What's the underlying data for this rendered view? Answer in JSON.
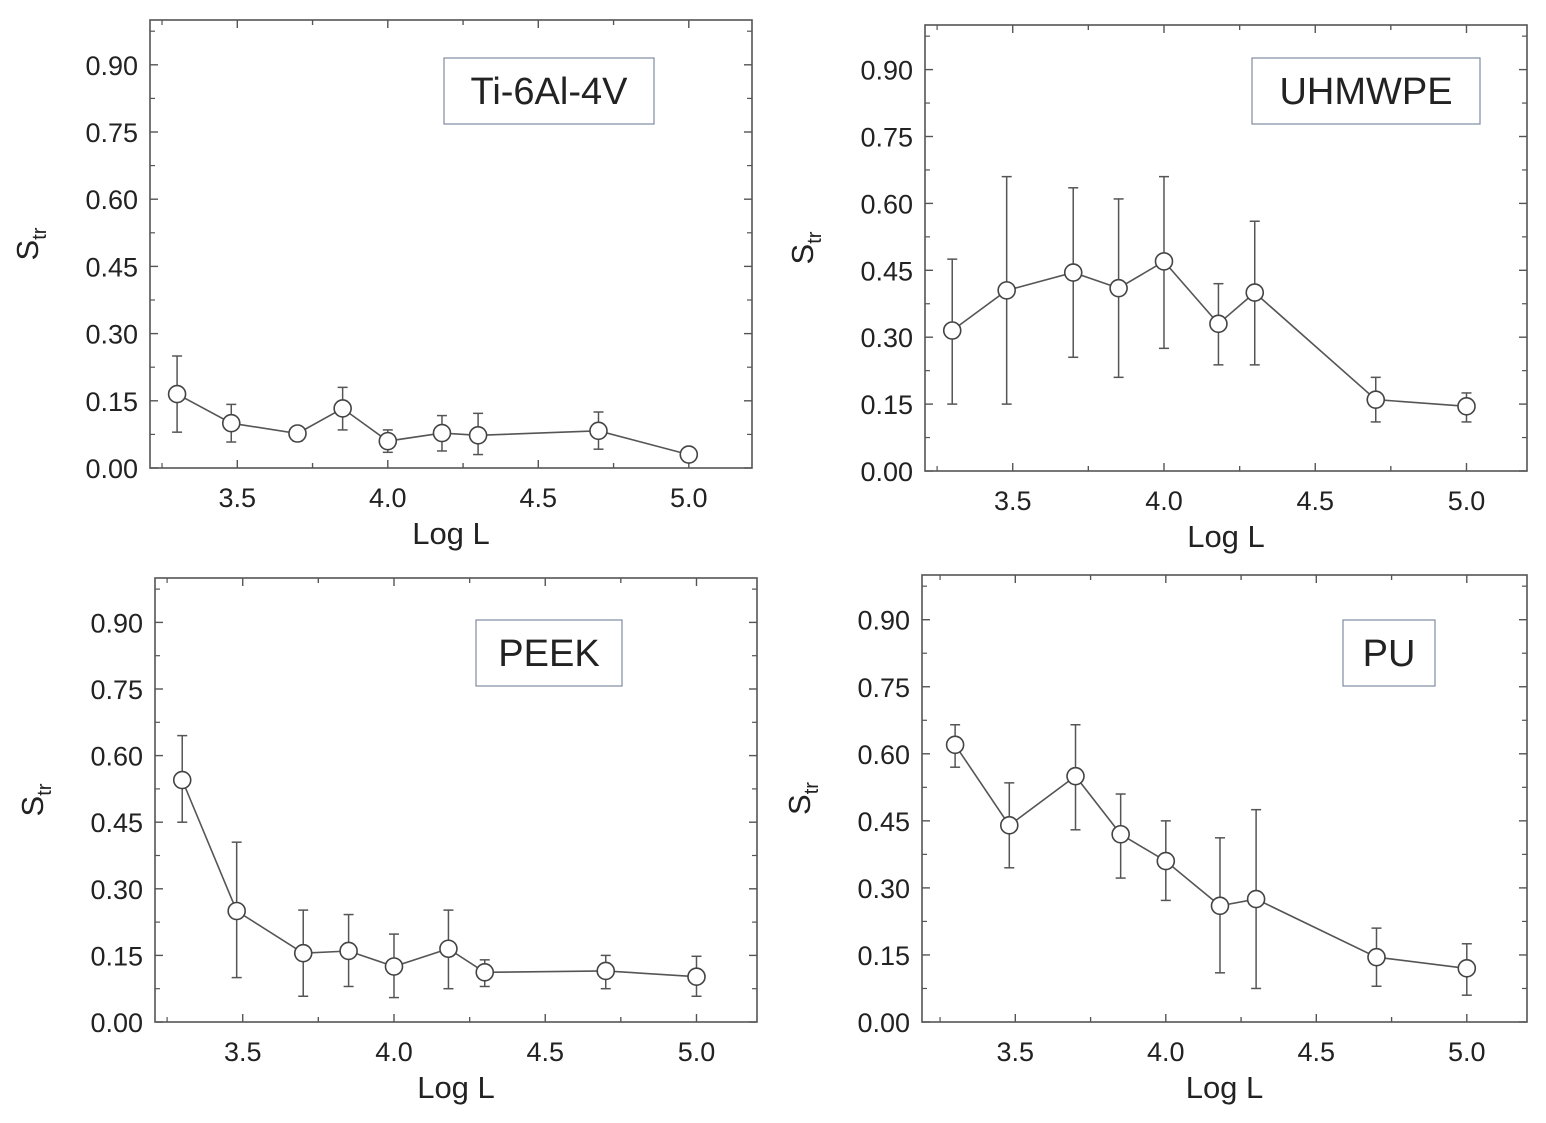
{
  "figure": {
    "colors": {
      "frame": "#555555",
      "line": "#555555",
      "marker_fill": "#ffffff",
      "label_box": "#7f8ca3"
    }
  },
  "chart_data": [
    {
      "type": "scatter",
      "title": "Ti-6Al-4V",
      "xlabel": "Log L",
      "ylabel": "S",
      "ylabel_sub": "tr",
      "xlim": [
        3.21,
        5.21
      ],
      "ylim": [
        0.0,
        1.0
      ],
      "xticks": [
        "3.5",
        "4.0",
        "4.5",
        "5.0"
      ],
      "yticks": [
        "0.00",
        "0.15",
        "0.30",
        "0.45",
        "0.60",
        "0.75",
        "0.90"
      ],
      "x": [
        3.3,
        3.48,
        3.7,
        3.85,
        4.0,
        4.18,
        4.3,
        4.7,
        5.0
      ],
      "y": [
        0.165,
        0.1,
        0.077,
        0.133,
        0.06,
        0.078,
        0.073,
        0.083,
        0.03
      ],
      "err_low": [
        0.08,
        0.058,
        0.06,
        0.085,
        0.035,
        0.038,
        0.03,
        0.042,
        0.025
      ],
      "err_high": [
        0.25,
        0.142,
        0.092,
        0.18,
        0.085,
        0.117,
        0.122,
        0.125,
        0.038
      ]
    },
    {
      "type": "scatter",
      "title": "UHMWPE",
      "xlabel": "Log L",
      "ylabel": "S",
      "ylabel_sub": "tr",
      "xlim": [
        3.21,
        5.2
      ],
      "ylim": [
        0.0,
        1.0
      ],
      "xticks": [
        "3.5",
        "4.0",
        "4.5",
        "5.0"
      ],
      "yticks": [
        "0.00",
        "0.15",
        "0.30",
        "0.45",
        "0.60",
        "0.75",
        "0.90"
      ],
      "x": [
        3.3,
        3.48,
        3.7,
        3.85,
        4.0,
        4.18,
        4.3,
        4.7,
        5.0
      ],
      "y": [
        0.315,
        0.405,
        0.445,
        0.41,
        0.47,
        0.33,
        0.4,
        0.16,
        0.145
      ],
      "err_low": [
        0.15,
        0.15,
        0.255,
        0.21,
        0.275,
        0.238,
        0.238,
        0.11,
        0.11
      ],
      "err_high": [
        0.475,
        0.66,
        0.635,
        0.61,
        0.66,
        0.42,
        0.56,
        0.21,
        0.175
      ]
    },
    {
      "type": "scatter",
      "title": "PEEK",
      "xlabel": "Log L",
      "ylabel": "S",
      "ylabel_sub": "tr",
      "xlim": [
        3.21,
        5.2
      ],
      "ylim": [
        0.0,
        1.0
      ],
      "xticks": [
        "3.5",
        "4.0",
        "4.5",
        "5.0"
      ],
      "yticks": [
        "0.00",
        "0.15",
        "0.30",
        "0.45",
        "0.60",
        "0.75",
        "0.90"
      ],
      "x": [
        3.3,
        3.48,
        3.7,
        3.85,
        4.0,
        4.18,
        4.3,
        4.7,
        5.0
      ],
      "y": [
        0.545,
        0.25,
        0.155,
        0.16,
        0.125,
        0.165,
        0.112,
        0.115,
        0.102
      ],
      "err_low": [
        0.45,
        0.1,
        0.058,
        0.08,
        0.055,
        0.075,
        0.08,
        0.075,
        0.058
      ],
      "err_high": [
        0.645,
        0.405,
        0.252,
        0.242,
        0.198,
        0.252,
        0.14,
        0.15,
        0.148
      ]
    },
    {
      "type": "scatter",
      "title": "PU",
      "xlabel": "Log L",
      "ylabel": "S",
      "ylabel_sub": "tr",
      "xlim": [
        3.19,
        5.2
      ],
      "ylim": [
        0.0,
        1.0
      ],
      "xticks": [
        "3.5",
        "4.0",
        "4.5",
        "5.0"
      ],
      "yticks": [
        "0.00",
        "0.15",
        "0.30",
        "0.45",
        "0.60",
        "0.75",
        "0.90"
      ],
      "x": [
        3.3,
        3.48,
        3.7,
        3.85,
        4.0,
        4.18,
        4.3,
        4.7,
        5.0
      ],
      "y": [
        0.62,
        0.44,
        0.55,
        0.42,
        0.36,
        0.26,
        0.275,
        0.145,
        0.12
      ],
      "err_low": [
        0.57,
        0.345,
        0.43,
        0.322,
        0.272,
        0.11,
        0.075,
        0.08,
        0.06
      ],
      "err_high": [
        0.665,
        0.535,
        0.665,
        0.51,
        0.45,
        0.412,
        0.475,
        0.21,
        0.175
      ]
    }
  ]
}
